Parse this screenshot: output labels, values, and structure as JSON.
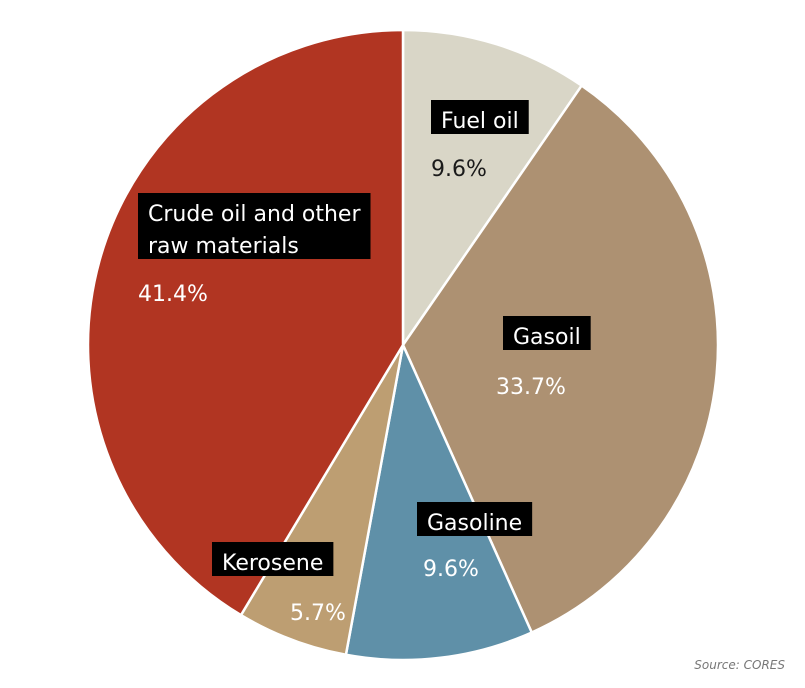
{
  "chart_data": {
    "type": "pie",
    "slices": [
      {
        "label": "Fuel oil",
        "lines": [
          "Fuel oil"
        ],
        "value": 9.6,
        "value_label": "9.6%",
        "color": "#d9d6c7",
        "pct_color": "#1a1a1a"
      },
      {
        "label": "Gasoil",
        "lines": [
          "Gasoil"
        ],
        "value": 33.7,
        "value_label": "33.7%",
        "color": "#ad9172",
        "pct_color": "#ffffff"
      },
      {
        "label": "Gasoline",
        "lines": [
          "Gasoline"
        ],
        "value": 9.6,
        "value_label": "9.6%",
        "color": "#5f90a8",
        "pct_color": "#ffffff"
      },
      {
        "label": "Kerosene",
        "lines": [
          "Kerosene"
        ],
        "value": 5.7,
        "value_label": "5.7%",
        "color": "#bd9e72",
        "pct_color": "#ffffff"
      },
      {
        "label": "Crude oil and other raw materials",
        "lines": [
          "Crude oil and other",
          "raw materials"
        ],
        "value": 41.4,
        "value_label": "41.4%",
        "color": "#b13522",
        "pct_color": "#ffffff"
      }
    ]
  },
  "source": "Source: CORES"
}
